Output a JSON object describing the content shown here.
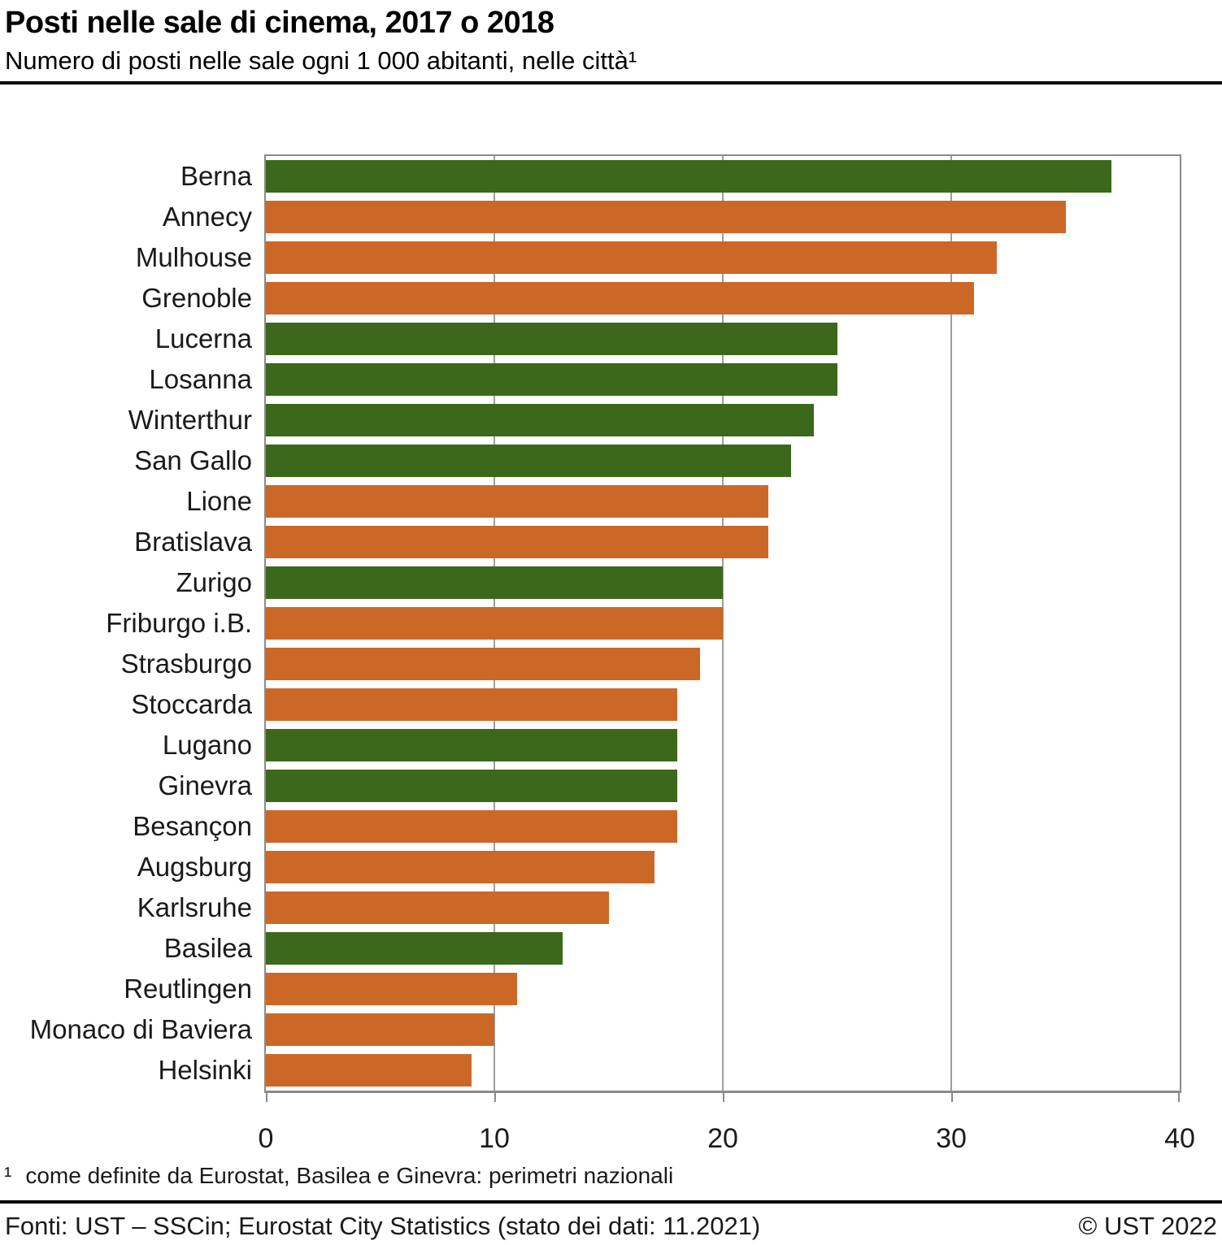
{
  "header": {
    "title": "Posti nelle sale di cinema, 2017 o 2018",
    "subtitle": "Numero di posti nelle sale ogni 1 000 abitanti, nelle città¹"
  },
  "chart_data": {
    "type": "bar",
    "orientation": "horizontal",
    "title": "Posti nelle sale di cinema, 2017 o 2018",
    "subtitle": "Numero di posti nelle sale ogni 1 000 abitanti, nelle città",
    "xlabel": "",
    "ylabel": "",
    "xlim": [
      0,
      40
    ],
    "x_ticks": [
      0,
      10,
      20,
      30,
      40
    ],
    "grid": true,
    "legend": "none",
    "categories": [
      "Berna",
      "Annecy",
      "Mulhouse",
      "Grenoble",
      "Lucerna",
      "Losanna",
      "Winterthur",
      "San Gallo",
      "Lione",
      "Bratislava",
      "Zurigo",
      "Friburgo i.B.",
      "Strasburgo",
      "Stoccarda",
      "Lugano",
      "Ginevra",
      "Besançon",
      "Augsburg",
      "Karlsruhe",
      "Basilea",
      "Reutlingen",
      "Monaco di Baviera",
      "Helsinki"
    ],
    "values": [
      37,
      35,
      32,
      31,
      25,
      25,
      24,
      23,
      22,
      22,
      20,
      20,
      19,
      18,
      18,
      18,
      18,
      17,
      15,
      13,
      11,
      10,
      9
    ],
    "bar_colors": [
      "green",
      "orange",
      "orange",
      "orange",
      "green",
      "green",
      "green",
      "green",
      "orange",
      "orange",
      "green",
      "orange",
      "orange",
      "orange",
      "green",
      "green",
      "orange",
      "orange",
      "orange",
      "green",
      "orange",
      "orange",
      "orange"
    ],
    "colors": {
      "green": "#3B681B",
      "orange": "#CC6827"
    },
    "gridline_color": "#9E9E9E",
    "axis_color": "#8A8A8A"
  },
  "footnote": {
    "marker": "¹",
    "text": "come definite da Eurostat, Basilea e Ginevra: perimetri nazionali"
  },
  "footer": {
    "source": "Fonti: UST – SSCin; Eurostat City Statistics (stato dei dati: 11.2021)",
    "copyright": "© UST 2022"
  }
}
